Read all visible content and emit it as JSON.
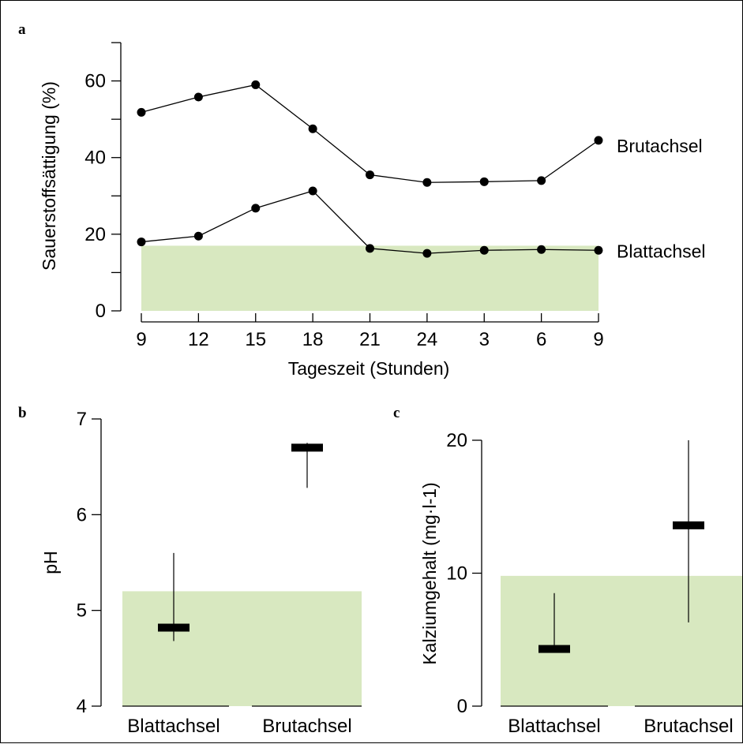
{
  "chart_data": [
    {
      "panel": "a",
      "type": "line",
      "title": "",
      "xlabel": "Tageszeit (Stunden)",
      "ylabel": "Sauerstoffsättigung (%)",
      "categories": [
        "9",
        "12",
        "15",
        "18",
        "21",
        "24",
        "3",
        "6",
        "9"
      ],
      "ylim": [
        0,
        70
      ],
      "yticks": [
        0,
        20,
        40,
        60
      ],
      "series": [
        {
          "name": "Brutachsel",
          "values": [
            51.8,
            55.8,
            59,
            47.5,
            35.5,
            33.5,
            33.7,
            34,
            44.5
          ]
        },
        {
          "name": "Blattachsel",
          "values": [
            18,
            19.5,
            26.8,
            31.3,
            16.3,
            15,
            15.8,
            16,
            15.8
          ]
        }
      ],
      "shaded_band": {
        "from": 0,
        "to": 17,
        "color": "#d8e8c0"
      },
      "grid": false,
      "legend": "inline-right"
    },
    {
      "panel": "b",
      "type": "bar",
      "title": "",
      "xlabel": "",
      "ylabel": "pH",
      "categories": [
        "Blattachsel",
        "Brutachsel"
      ],
      "ylim": [
        4,
        7
      ],
      "yticks": [
        4,
        5,
        6,
        7
      ],
      "series": [
        {
          "values": [
            4.82,
            6.7
          ],
          "low": [
            4.68,
            6.28
          ],
          "high": [
            5.6,
            6.75
          ]
        }
      ],
      "shaded_band": {
        "from": 4,
        "to": 5.2,
        "color": "#d8e8c0"
      },
      "grid": false
    },
    {
      "panel": "c",
      "type": "bar",
      "title": "",
      "xlabel": "",
      "ylabel": "Kalziumgehalt (mg·l-1)",
      "categories": [
        "Blattachsel",
        "Brutachsel"
      ],
      "ylim": [
        0,
        20
      ],
      "yticks": [
        0,
        10,
        20
      ],
      "series": [
        {
          "values": [
            4.3,
            13.6
          ],
          "low": [
            4.3,
            6.3
          ],
          "high": [
            8.5,
            20
          ]
        }
      ],
      "shaded_band": {
        "from": 0,
        "to": 9.8,
        "color": "#d8e8c0"
      },
      "grid": false
    }
  ]
}
